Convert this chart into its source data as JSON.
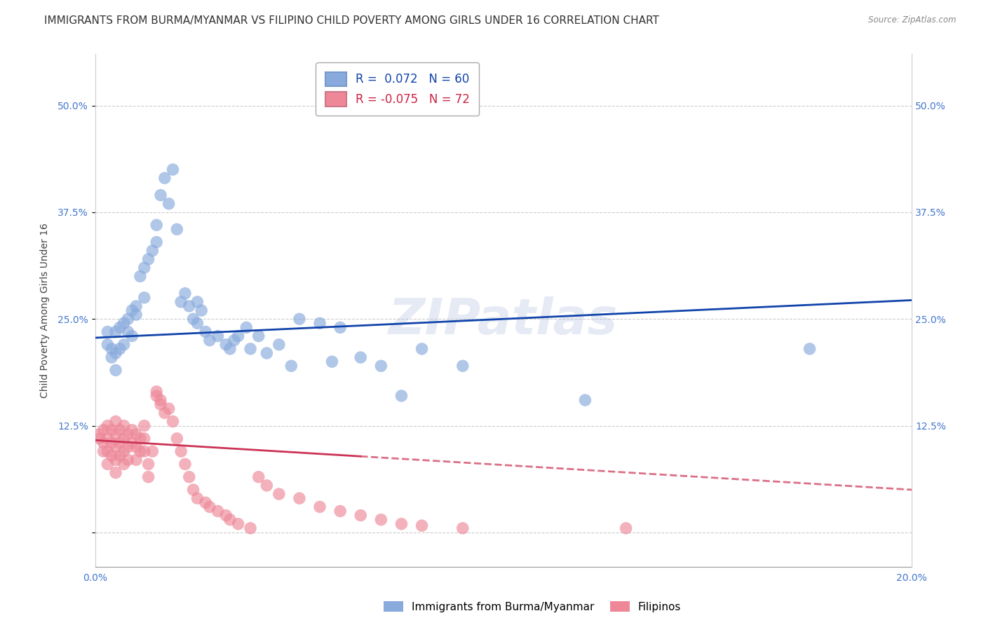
{
  "title": "IMMIGRANTS FROM BURMA/MYANMAR VS FILIPINO CHILD POVERTY AMONG GIRLS UNDER 16 CORRELATION CHART",
  "source": "Source: ZipAtlas.com",
  "ylabel": "Child Poverty Among Girls Under 16",
  "xlim": [
    0.0,
    0.2
  ],
  "ylim": [
    -0.04,
    0.56
  ],
  "yticks": [
    0.0,
    0.125,
    0.25,
    0.375,
    0.5
  ],
  "ytick_labels": [
    "",
    "12.5%",
    "25.0%",
    "37.5%",
    "50.0%"
  ],
  "xticks": [
    0.0,
    0.05,
    0.1,
    0.15,
    0.2
  ],
  "xtick_labels": [
    "0.0%",
    "",
    "",
    "",
    "20.0%"
  ],
  "watermark": "ZIPatlas",
  "blue_color": "#88AADD",
  "pink_color": "#EE8899",
  "line_blue": "#1144AA",
  "line_pink": "#CC3355",
  "axis_color": "#4477CC",
  "blue_scatter_x": [
    0.003,
    0.003,
    0.004,
    0.004,
    0.005,
    0.005,
    0.005,
    0.006,
    0.006,
    0.007,
    0.007,
    0.008,
    0.008,
    0.009,
    0.009,
    0.01,
    0.01,
    0.011,
    0.012,
    0.012,
    0.013,
    0.014,
    0.015,
    0.015,
    0.016,
    0.017,
    0.018,
    0.019,
    0.02,
    0.021,
    0.022,
    0.023,
    0.024,
    0.025,
    0.025,
    0.026,
    0.027,
    0.028,
    0.03,
    0.032,
    0.033,
    0.034,
    0.035,
    0.037,
    0.038,
    0.04,
    0.042,
    0.045,
    0.048,
    0.05,
    0.055,
    0.058,
    0.06,
    0.065,
    0.07,
    0.075,
    0.08,
    0.09,
    0.12,
    0.175
  ],
  "blue_scatter_y": [
    0.235,
    0.22,
    0.215,
    0.205,
    0.235,
    0.19,
    0.21,
    0.24,
    0.215,
    0.245,
    0.22,
    0.235,
    0.25,
    0.26,
    0.23,
    0.265,
    0.255,
    0.3,
    0.31,
    0.275,
    0.32,
    0.33,
    0.34,
    0.36,
    0.395,
    0.415,
    0.385,
    0.425,
    0.355,
    0.27,
    0.28,
    0.265,
    0.25,
    0.245,
    0.27,
    0.26,
    0.235,
    0.225,
    0.23,
    0.22,
    0.215,
    0.225,
    0.23,
    0.24,
    0.215,
    0.23,
    0.21,
    0.22,
    0.195,
    0.25,
    0.245,
    0.2,
    0.24,
    0.205,
    0.195,
    0.16,
    0.215,
    0.195,
    0.155,
    0.215
  ],
  "pink_scatter_x": [
    0.001,
    0.001,
    0.002,
    0.002,
    0.002,
    0.003,
    0.003,
    0.003,
    0.003,
    0.004,
    0.004,
    0.004,
    0.005,
    0.005,
    0.005,
    0.005,
    0.005,
    0.006,
    0.006,
    0.006,
    0.007,
    0.007,
    0.007,
    0.007,
    0.008,
    0.008,
    0.008,
    0.009,
    0.009,
    0.01,
    0.01,
    0.01,
    0.011,
    0.011,
    0.012,
    0.012,
    0.012,
    0.013,
    0.013,
    0.014,
    0.015,
    0.015,
    0.016,
    0.016,
    0.017,
    0.018,
    0.019,
    0.02,
    0.021,
    0.022,
    0.023,
    0.024,
    0.025,
    0.027,
    0.028,
    0.03,
    0.032,
    0.033,
    0.035,
    0.038,
    0.04,
    0.042,
    0.045,
    0.05,
    0.055,
    0.06,
    0.065,
    0.07,
    0.075,
    0.08,
    0.09,
    0.13
  ],
  "pink_scatter_y": [
    0.115,
    0.11,
    0.12,
    0.105,
    0.095,
    0.125,
    0.11,
    0.095,
    0.08,
    0.12,
    0.105,
    0.09,
    0.13,
    0.115,
    0.1,
    0.085,
    0.07,
    0.12,
    0.105,
    0.09,
    0.125,
    0.11,
    0.095,
    0.08,
    0.115,
    0.1,
    0.085,
    0.12,
    0.105,
    0.115,
    0.1,
    0.085,
    0.11,
    0.095,
    0.125,
    0.11,
    0.095,
    0.08,
    0.065,
    0.095,
    0.16,
    0.165,
    0.15,
    0.155,
    0.14,
    0.145,
    0.13,
    0.11,
    0.095,
    0.08,
    0.065,
    0.05,
    0.04,
    0.035,
    0.03,
    0.025,
    0.02,
    0.015,
    0.01,
    0.005,
    0.065,
    0.055,
    0.045,
    0.04,
    0.03,
    0.025,
    0.02,
    0.015,
    0.01,
    0.008,
    0.005,
    0.005
  ],
  "background_color": "#FFFFFF",
  "grid_color": "#CCCCCC",
  "title_fontsize": 11,
  "axis_label_fontsize": 10,
  "tick_fontsize": 10,
  "watermark_fontsize": 52,
  "watermark_color": "#AABBDD",
  "watermark_alpha": 0.3
}
